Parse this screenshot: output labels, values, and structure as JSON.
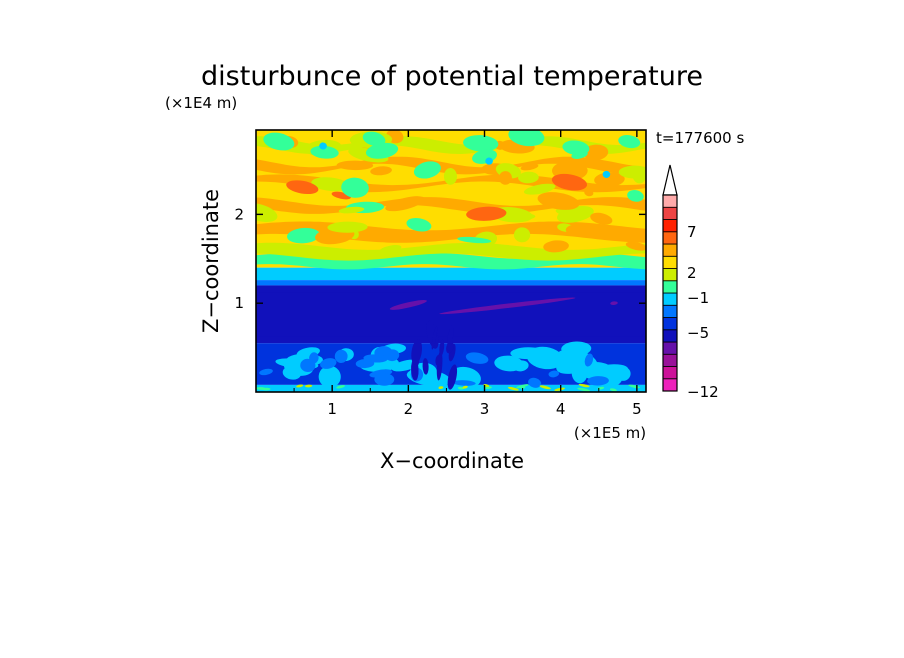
{
  "chart_data": {
    "type": "heatmap",
    "title": "disturbunce of potential temperature",
    "xlabel": "X−coordinate",
    "ylabel": "Z−coordinate",
    "x_unit": "(×1E5 m)",
    "y_unit": "(×1E4 m)",
    "time_label": "t=177600 s",
    "xlim": [
      0,
      5.12
    ],
    "ylim": [
      0,
      2.95
    ],
    "x_ticks": [
      1,
      2,
      3,
      4,
      5
    ],
    "y_ticks": [
      1,
      2
    ],
    "x_tick_labels": [
      "1",
      "2",
      "3",
      "4",
      "5"
    ],
    "y_tick_labels": [
      "1",
      "2"
    ],
    "colorbar": {
      "colors": [
        "#ee22bb",
        "#cc1199",
        "#991199",
        "#6611aa",
        "#1111bb",
        "#0033dd",
        "#0077ff",
        "#00ccff",
        "#33ff99",
        "#ccee00",
        "#ffdd00",
        "#ffaa00",
        "#ff6611",
        "#ff2200",
        "#ee4444",
        "#ffaaaa",
        "#ffdddd"
      ],
      "extend": "max",
      "tick_labels": [
        "7",
        "2",
        "−1",
        "−5",
        "−12"
      ],
      "tick_levels": [
        7,
        2,
        -1,
        -5,
        -12
      ]
    },
    "layers": [
      {
        "z": [
          0.0,
          0.08
        ],
        "band": "low-mix",
        "dominant": "#00ccff"
      },
      {
        "z": [
          0.08,
          0.55
        ],
        "band": "cyan-blue cells",
        "dominant": "#00ccff"
      },
      {
        "z": [
          0.55,
          1.2
        ],
        "band": "blue stable layer",
        "dominant": "#1111bb"
      },
      {
        "z": [
          1.2,
          1.4
        ],
        "band": "transition",
        "dominant": "#33ff99"
      },
      {
        "z": [
          1.4,
          2.95
        ],
        "band": "yellow-orange mixed",
        "dominant": "#ffdd00"
      }
    ]
  }
}
